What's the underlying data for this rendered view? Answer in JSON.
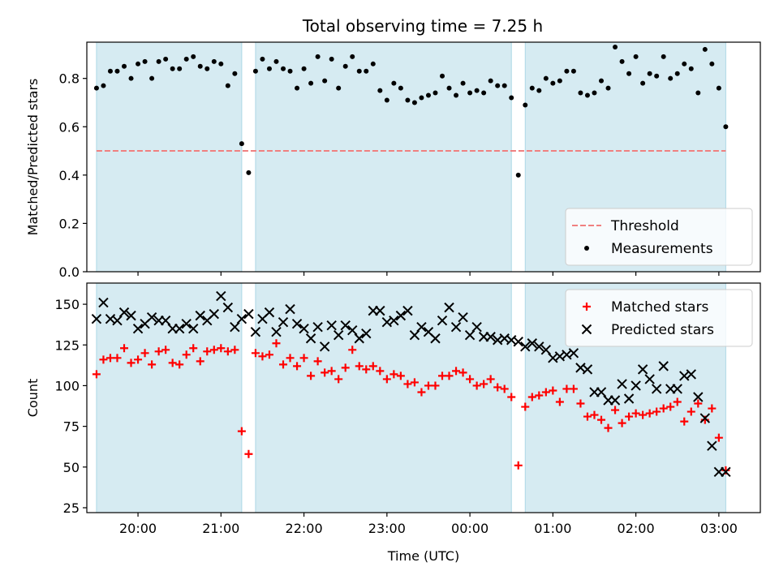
{
  "figure": {
    "title": "Total observing time = 7.25 h"
  },
  "chart_data": [
    {
      "type": "scatter",
      "panel": "top",
      "title": "Total observing time = 7.25 h",
      "xlabel": "",
      "ylabel": "Matched/Predicted stars",
      "xlim": [
        "19:23",
        "03:30"
      ],
      "ylim": [
        0,
        0.95
      ],
      "yticks": [
        0.0,
        0.2,
        0.4,
        0.6,
        0.8
      ],
      "ytick_labels": [
        "0.0",
        "0.2",
        "0.4",
        "0.6",
        "0.8"
      ],
      "grid": false,
      "legend_position": "lower-right",
      "shaded_intervals": [
        [
          "19:30",
          "21:15"
        ],
        [
          "21:25",
          "00:30"
        ],
        [
          "00:40",
          "03:05"
        ]
      ],
      "threshold": {
        "name": "Threshold",
        "value": 0.5,
        "color": "#f08080",
        "style": "dashed"
      },
      "series": [
        {
          "name": "Measurements",
          "marker": "dot",
          "color": "#000000",
          "x": [
            "19:30",
            "19:35",
            "19:40",
            "19:45",
            "19:50",
            "19:55",
            "20:00",
            "20:05",
            "20:10",
            "20:15",
            "20:20",
            "20:25",
            "20:30",
            "20:35",
            "20:40",
            "20:45",
            "20:50",
            "20:55",
            "21:00",
            "21:05",
            "21:10",
            "21:15",
            "21:20",
            "21:25",
            "21:30",
            "21:35",
            "21:40",
            "21:45",
            "21:50",
            "21:55",
            "22:00",
            "22:05",
            "22:10",
            "22:15",
            "22:20",
            "22:25",
            "22:30",
            "22:35",
            "22:40",
            "22:45",
            "22:50",
            "22:55",
            "23:00",
            "23:05",
            "23:10",
            "23:15",
            "23:20",
            "23:25",
            "23:30",
            "23:35",
            "23:40",
            "23:45",
            "23:50",
            "23:55",
            "00:00",
            "00:05",
            "00:10",
            "00:15",
            "00:20",
            "00:25",
            "00:30",
            "00:35",
            "00:40",
            "00:45",
            "00:50",
            "00:55",
            "01:00",
            "01:05",
            "01:10",
            "01:15",
            "01:20",
            "01:25",
            "01:30",
            "01:35",
            "01:40",
            "01:45",
            "01:50",
            "01:55",
            "02:00",
            "02:05",
            "02:10",
            "02:15",
            "02:20",
            "02:25",
            "02:30",
            "02:35",
            "02:40",
            "02:45",
            "02:50",
            "02:55",
            "03:00",
            "03:05"
          ],
          "y": [
            0.76,
            0.77,
            0.83,
            0.83,
            0.85,
            0.8,
            0.86,
            0.87,
            0.8,
            0.87,
            0.88,
            0.84,
            0.84,
            0.88,
            0.89,
            0.85,
            0.84,
            0.87,
            0.86,
            0.77,
            0.82,
            0.53,
            0.41,
            0.83,
            0.88,
            0.84,
            0.87,
            0.84,
            0.83,
            0.76,
            0.84,
            0.78,
            0.89,
            0.79,
            0.88,
            0.76,
            0.85,
            0.89,
            0.83,
            0.83,
            0.86,
            0.75,
            0.71,
            0.78,
            0.76,
            0.71,
            0.7,
            0.72,
            0.73,
            0.74,
            0.81,
            0.76,
            0.73,
            0.78,
            0.74,
            0.75,
            0.74,
            0.79,
            0.77,
            0.77,
            0.72,
            0.4,
            0.69,
            0.76,
            0.75,
            0.8,
            0.78,
            0.79,
            0.83,
            0.83,
            0.74,
            0.73,
            0.74,
            0.79,
            0.76,
            0.93,
            0.87,
            0.82,
            0.89,
            0.78,
            0.82,
            0.81,
            0.89,
            0.8,
            0.82,
            0.86,
            0.84,
            0.74,
            0.92,
            0.86,
            0.76,
            0.6
          ]
        }
      ]
    },
    {
      "type": "scatter",
      "panel": "bottom",
      "title": "",
      "xlabel": "Time (UTC)",
      "ylabel": "Count",
      "xlim": [
        "19:23",
        "03:30"
      ],
      "ylim": [
        22,
        163
      ],
      "yticks": [
        25,
        50,
        75,
        100,
        125,
        150
      ],
      "ytick_labels": [
        "25",
        "50",
        "75",
        "100",
        "125",
        "150"
      ],
      "xticks": [
        "20:00",
        "21:00",
        "22:00",
        "23:00",
        "00:00",
        "01:00",
        "02:00",
        "03:00"
      ],
      "xtick_labels": [
        "20:00",
        "21:00",
        "22:00",
        "23:00",
        "00:00",
        "01:00",
        "02:00",
        "03:00"
      ],
      "grid": false,
      "legend_position": "top-right",
      "shaded_intervals": [
        [
          "19:30",
          "21:15"
        ],
        [
          "21:25",
          "00:30"
        ],
        [
          "00:40",
          "03:05"
        ]
      ],
      "series": [
        {
          "name": "Matched stars",
          "marker": "plus",
          "color": "#ff0000",
          "x": [
            "19:30",
            "19:35",
            "19:40",
            "19:45",
            "19:50",
            "19:55",
            "20:00",
            "20:05",
            "20:10",
            "20:15",
            "20:20",
            "20:25",
            "20:30",
            "20:35",
            "20:40",
            "20:45",
            "20:50",
            "20:55",
            "21:00",
            "21:05",
            "21:10",
            "21:15",
            "21:20",
            "21:25",
            "21:30",
            "21:35",
            "21:40",
            "21:45",
            "21:50",
            "21:55",
            "22:00",
            "22:05",
            "22:10",
            "22:15",
            "22:20",
            "22:25",
            "22:30",
            "22:35",
            "22:40",
            "22:45",
            "22:50",
            "22:55",
            "23:00",
            "23:05",
            "23:10",
            "23:15",
            "23:20",
            "23:25",
            "23:30",
            "23:35",
            "23:40",
            "23:45",
            "23:50",
            "23:55",
            "00:00",
            "00:05",
            "00:10",
            "00:15",
            "00:20",
            "00:25",
            "00:30",
            "00:35",
            "00:40",
            "00:45",
            "00:50",
            "00:55",
            "01:00",
            "01:05",
            "01:10",
            "01:15",
            "01:20",
            "01:25",
            "01:30",
            "01:35",
            "01:40",
            "01:45",
            "01:50",
            "01:55",
            "02:00",
            "02:05",
            "02:10",
            "02:15",
            "02:20",
            "02:25",
            "02:30",
            "02:35",
            "02:40",
            "02:45",
            "02:50",
            "02:55",
            "03:00",
            "03:05"
          ],
          "y": [
            107,
            116,
            117,
            117,
            123,
            114,
            116,
            120,
            113,
            121,
            122,
            114,
            113,
            119,
            123,
            115,
            121,
            122,
            123,
            121,
            122,
            72,
            58,
            120,
            118,
            119,
            126,
            113,
            117,
            112,
            117,
            106,
            115,
            108,
            109,
            104,
            111,
            122,
            112,
            110,
            112,
            109,
            104,
            107,
            106,
            101,
            102,
            96,
            100,
            100,
            106,
            106,
            109,
            108,
            104,
            100,
            101,
            104,
            99,
            98,
            93,
            51,
            87,
            93,
            94,
            96,
            97,
            90,
            98,
            98,
            89,
            81,
            82,
            79,
            74,
            85,
            77,
            81,
            83,
            82,
            83,
            84,
            86,
            87,
            90,
            78,
            84,
            89,
            79,
            86,
            68,
            48
          ]
        },
        {
          "name": "Predicted stars",
          "marker": "x",
          "color": "#000000",
          "x": [
            "19:30",
            "19:35",
            "19:40",
            "19:45",
            "19:50",
            "19:55",
            "20:00",
            "20:05",
            "20:10",
            "20:15",
            "20:20",
            "20:25",
            "20:30",
            "20:35",
            "20:40",
            "20:45",
            "20:50",
            "20:55",
            "21:00",
            "21:05",
            "21:10",
            "21:15",
            "21:20",
            "21:25",
            "21:30",
            "21:35",
            "21:40",
            "21:45",
            "21:50",
            "21:55",
            "22:00",
            "22:05",
            "22:10",
            "22:15",
            "22:20",
            "22:25",
            "22:30",
            "22:35",
            "22:40",
            "22:45",
            "22:50",
            "22:55",
            "23:00",
            "23:05",
            "23:10",
            "23:15",
            "23:20",
            "23:25",
            "23:30",
            "23:35",
            "23:40",
            "23:45",
            "23:50",
            "23:55",
            "00:00",
            "00:05",
            "00:10",
            "00:15",
            "00:20",
            "00:25",
            "00:30",
            "00:35",
            "00:40",
            "00:45",
            "00:50",
            "00:55",
            "01:00",
            "01:05",
            "01:10",
            "01:15",
            "01:20",
            "01:25",
            "01:30",
            "01:35",
            "01:40",
            "01:45",
            "01:50",
            "01:55",
            "02:00",
            "02:05",
            "02:10",
            "02:15",
            "02:20",
            "02:25",
            "02:30",
            "02:35",
            "02:40",
            "02:45",
            "02:50",
            "02:55",
            "03:00",
            "03:05"
          ],
          "y": [
            141,
            151,
            141,
            140,
            145,
            143,
            135,
            138,
            142,
            140,
            140,
            135,
            135,
            138,
            135,
            143,
            140,
            144,
            155,
            148,
            136,
            141,
            144,
            133,
            141,
            145,
            133,
            139,
            147,
            138,
            135,
            129,
            136,
            124,
            137,
            131,
            137,
            134,
            129,
            132,
            146,
            146,
            139,
            140,
            143,
            146,
            131,
            136,
            133,
            129,
            140,
            148,
            136,
            142,
            131,
            136,
            130,
            130,
            128,
            129,
            128,
            127,
            124,
            126,
            124,
            122,
            117,
            118,
            119,
            120,
            111,
            110,
            96,
            96,
            91,
            91,
            101,
            92,
            100,
            110,
            104,
            98,
            112,
            98,
            98,
            106,
            107,
            93,
            80,
            63,
            47,
            47
          ]
        }
      ]
    }
  ]
}
